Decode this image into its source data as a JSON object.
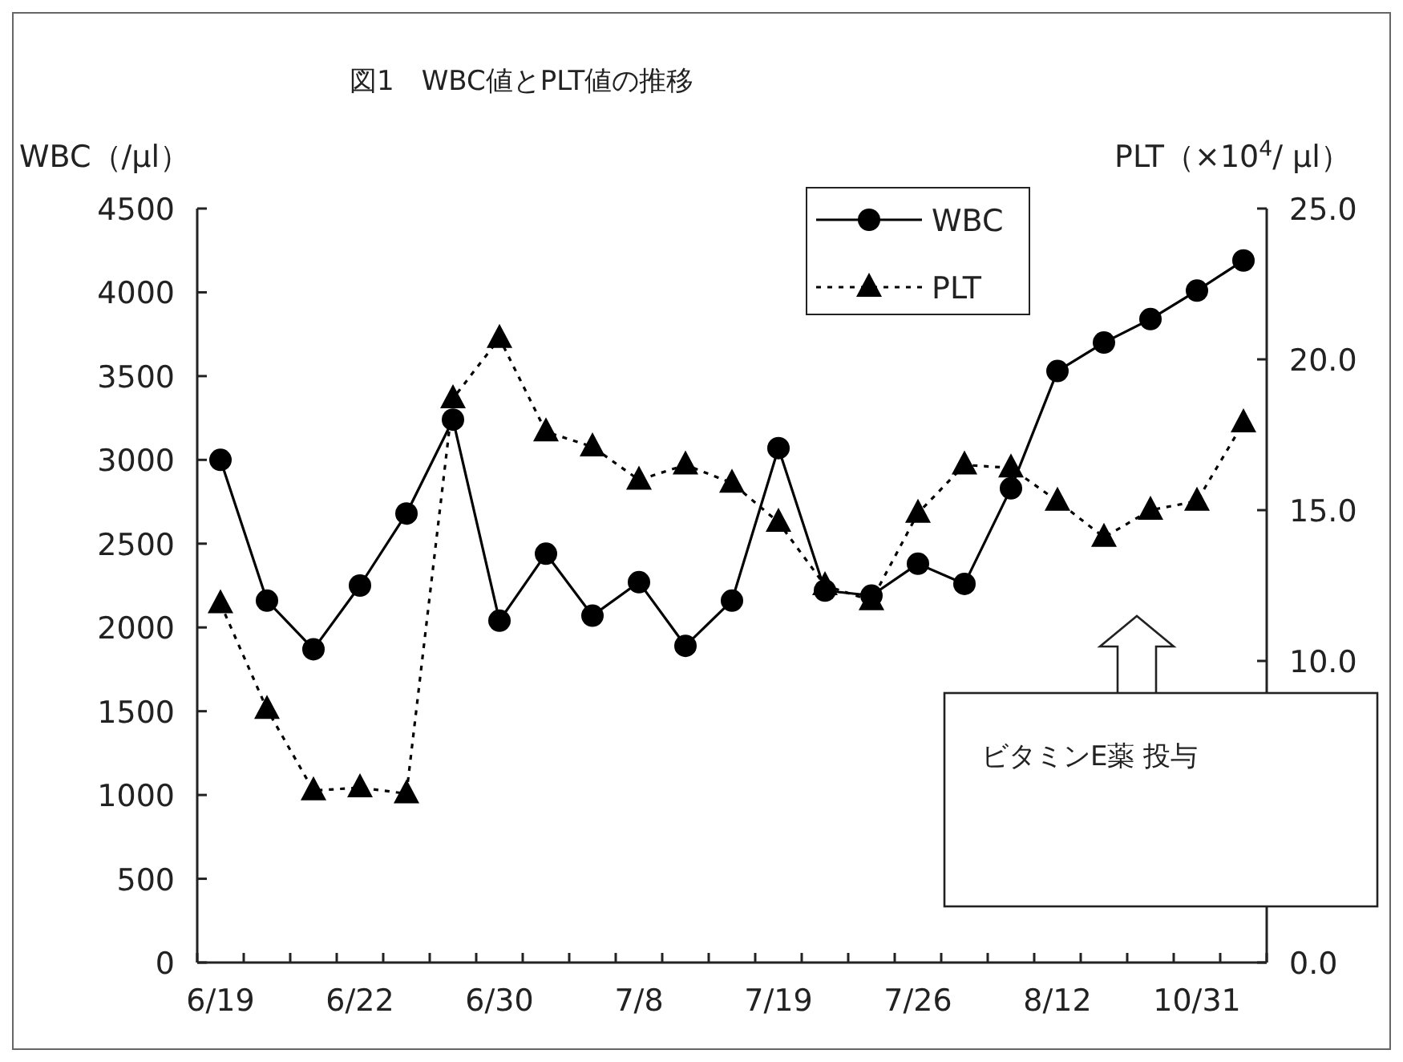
{
  "chart_data": {
    "type": "line",
    "title": "図1　WBC値とPLT値の推移",
    "ylabel": "WBC（/μl）",
    "y2label": "PLT（×10$^{4}$/ μl）",
    "categories": [
      "6/19",
      null,
      null,
      "6/22",
      null,
      null,
      "6/30",
      null,
      null,
      "7/8",
      null,
      null,
      "7/19",
      null,
      null,
      "7/26",
      null,
      null,
      "8/12",
      null,
      null,
      "10/31",
      null
    ],
    "series": [
      {
        "name": "WBC",
        "color": "#000000",
        "marker": "circle",
        "line_style": "solid",
        "values": [
          3000,
          2160,
          1870,
          2250,
          2680,
          3240,
          2040,
          2440,
          2070,
          2270,
          1890,
          2160,
          3070,
          2220,
          2190,
          2380,
          2260,
          2830,
          3530,
          3700,
          3840,
          4010,
          4190
        ]
      },
      {
        "name": "PLT",
        "color": "#000000",
        "marker": "triangle",
        "line_style": "dotted",
        "axis": "y2",
        "values": [
          11.9,
          8.4,
          5.7,
          5.8,
          5.6,
          18.7,
          20.7,
          17.6,
          17.1,
          16.0,
          16.5,
          15.9,
          14.6,
          12.5,
          12.0,
          14.9,
          16.5,
          16.4,
          15.3,
          14.1,
          15.0,
          15.3,
          17.9
        ]
      }
    ],
    "ylim": [
      0,
      4500
    ],
    "yticks": [
      0,
      500,
      1000,
      1500,
      2000,
      2500,
      3000,
      3500,
      4000,
      4500
    ],
    "y2lim": [
      0,
      25
    ],
    "y2ticks": [
      {
        "value": 0,
        "label": "0.0"
      },
      {
        "value": 10,
        "label": "10.0"
      },
      {
        "value": 15,
        "label": "15.0"
      },
      {
        "value": 20,
        "label": "20.0"
      },
      {
        "value": 25,
        "label": "25.0"
      }
    ],
    "annotations": [
      "ビタミンE薬 投与"
    ],
    "legend": "top",
    "grid": false
  }
}
